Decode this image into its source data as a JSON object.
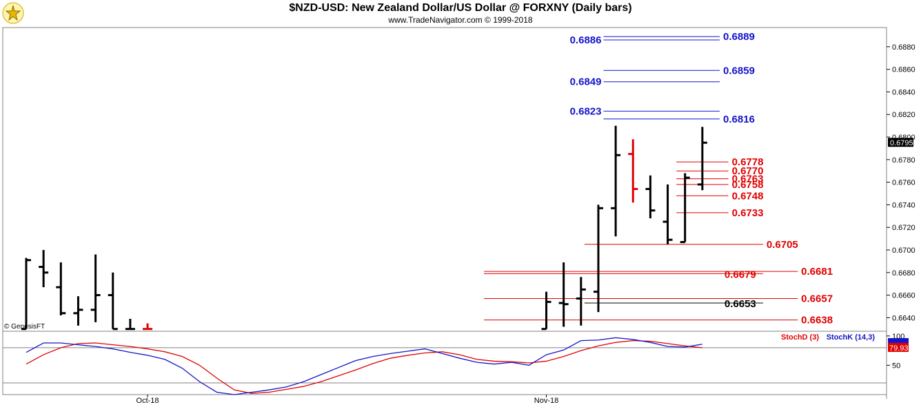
{
  "header": {
    "title": "$NZD-USD:  New Zealand Dollar/US Dollar @ FORXNY  (Daily bars)",
    "subtitle": "www.TradeNavigator.com © 1999-2018"
  },
  "colors": {
    "up_bar": "#000000",
    "down_bar": "#e00000",
    "blue_level": "#1414c8",
    "red_level": "#e00000",
    "black_level": "#000000",
    "stoch_d": "#e00000",
    "stoch_k": "#1414c8",
    "grid": "#808080",
    "price_marker_bg": "#000000"
  },
  "chart_data": [
    {
      "type": "ohlc",
      "title": "$NZD-USD:  New Zealand Dollar/US Dollar @ FORXNY  (Daily bars)",
      "xlabel": "",
      "ylabel": "",
      "ylim": [
        0.6628,
        0.6897
      ],
      "y_ticks": [
        "0.6880",
        "0.6860",
        "0.6840",
        "0.6820",
        "0.6800",
        "0.6780",
        "0.6760",
        "0.6740",
        "0.6720",
        "0.6700",
        "0.6680",
        "0.6660",
        "0.6640"
      ],
      "y_tick_values": [
        0.688,
        0.686,
        0.684,
        0.682,
        0.68,
        0.678,
        0.676,
        0.674,
        0.672,
        0.67,
        0.668,
        0.666,
        0.664
      ],
      "x_labels": [
        {
          "label": "Oct-18",
          "index": 7
        },
        {
          "label": "Nov-18",
          "index": 30
        }
      ],
      "last_price": "0.6795",
      "watermark": "© GenesisFT",
      "grid": false,
      "bars": [
        {
          "i": 0,
          "o": 0.663,
          "h": 0.6693,
          "l": 0.663,
          "c": 0.6691,
          "dir": "up"
        },
        {
          "i": 1,
          "o": 0.6685,
          "h": 0.67,
          "l": 0.6667,
          "c": 0.668,
          "dir": "up"
        },
        {
          "i": 2,
          "o": 0.6667,
          "h": 0.6689,
          "l": 0.6642,
          "c": 0.6644,
          "dir": "up"
        },
        {
          "i": 3,
          "o": 0.6644,
          "h": 0.6659,
          "l": 0.6633,
          "c": 0.6647,
          "dir": "up"
        },
        {
          "i": 4,
          "o": 0.6647,
          "h": 0.6696,
          "l": 0.6636,
          "c": 0.666,
          "dir": "up"
        },
        {
          "i": 5,
          "o": 0.666,
          "h": 0.668,
          "l": 0.663,
          "c": 0.663,
          "dir": "up"
        },
        {
          "i": 6,
          "o": 0.663,
          "h": 0.6639,
          "l": 0.663,
          "c": 0.663,
          "dir": "up"
        },
        {
          "i": 7,
          "o": 0.663,
          "h": 0.6635,
          "l": 0.663,
          "c": 0.663,
          "dir": "down"
        },
        {
          "i": 30,
          "o": 0.663,
          "h": 0.6663,
          "l": 0.663,
          "c": 0.6654,
          "dir": "up"
        },
        {
          "i": 31,
          "o": 0.6653,
          "h": 0.6689,
          "l": 0.6632,
          "c": 0.6652,
          "dir": "up"
        },
        {
          "i": 32,
          "o": 0.6657,
          "h": 0.6676,
          "l": 0.6633,
          "c": 0.6665,
          "dir": "up"
        },
        {
          "i": 33,
          "o": 0.6663,
          "h": 0.674,
          "l": 0.6645,
          "c": 0.6737,
          "dir": "up"
        },
        {
          "i": 34,
          "o": 0.6737,
          "h": 0.681,
          "l": 0.6712,
          "c": 0.6784,
          "dir": "up"
        },
        {
          "i": 35,
          "o": 0.6785,
          "h": 0.6798,
          "l": 0.6742,
          "c": 0.6754,
          "dir": "down"
        },
        {
          "i": 36,
          "o": 0.6754,
          "h": 0.6766,
          "l": 0.6728,
          "c": 0.6735,
          "dir": "up"
        },
        {
          "i": 37,
          "o": 0.6725,
          "h": 0.6758,
          "l": 0.6705,
          "c": 0.6709,
          "dir": "up"
        },
        {
          "i": 38,
          "o": 0.6707,
          "h": 0.6768,
          "l": 0.6707,
          "c": 0.6764,
          "dir": "up"
        },
        {
          "i": 39,
          "o": 0.6758,
          "h": 0.6809,
          "l": 0.6753,
          "c": 0.6795,
          "dir": "up"
        }
      ],
      "levels": [
        {
          "value": 0.6889,
          "label": "0.6889",
          "color": "blue",
          "from": 33.3,
          "to": 40,
          "side": "right"
        },
        {
          "value": 0.6886,
          "label": "0.6886",
          "color": "blue",
          "from": 33.3,
          "to": 40,
          "side": "left"
        },
        {
          "value": 0.6859,
          "label": "0.6859",
          "color": "blue",
          "from": 33.3,
          "to": 40,
          "side": "right"
        },
        {
          "value": 0.6849,
          "label": "0.6849",
          "color": "blue",
          "from": 33.3,
          "to": 40,
          "side": "left"
        },
        {
          "value": 0.6823,
          "label": "0.6823",
          "color": "blue",
          "from": 33.3,
          "to": 40,
          "side": "left"
        },
        {
          "value": 0.6816,
          "label": "0.6816",
          "color": "blue",
          "from": 33.3,
          "to": 40,
          "side": "right"
        },
        {
          "value": 0.6778,
          "label": "0.6778",
          "color": "red",
          "from": 37.5,
          "to": 40.5,
          "side": "right"
        },
        {
          "value": 0.677,
          "label": "0.6770",
          "color": "red",
          "from": 37.5,
          "to": 40.5,
          "side": "right"
        },
        {
          "value": 0.6763,
          "label": "0.6763",
          "color": "red",
          "from": 37.5,
          "to": 40.5,
          "side": "right"
        },
        {
          "value": 0.6758,
          "label": "0.6758",
          "color": "red",
          "from": 37.5,
          "to": 40.5,
          "side": "right"
        },
        {
          "value": 0.6748,
          "label": "0.6748",
          "color": "red",
          "from": 37.5,
          "to": 40.5,
          "side": "right"
        },
        {
          "value": 0.6733,
          "label": "0.6733",
          "color": "red",
          "from": 37.5,
          "to": 40.5,
          "side": "right"
        },
        {
          "value": 0.6705,
          "label": "0.6705",
          "color": "red",
          "from": 32.2,
          "to": 42.5,
          "side": "right"
        },
        {
          "value": 0.6681,
          "label": "0.6681",
          "color": "red",
          "from": 26.4,
          "to": 44.5,
          "side": "right"
        },
        {
          "value": 0.6679,
          "label": "0.6679",
          "color": "red",
          "from": 26.4,
          "to": 42.5,
          "side": "inline"
        },
        {
          "value": 0.6657,
          "label": "0.6657",
          "color": "red",
          "from": 26.4,
          "to": 44.5,
          "side": "right"
        },
        {
          "value": 0.6653,
          "label": "0.6653",
          "color": "black",
          "from": 32.2,
          "to": 42.5,
          "side": "inline"
        },
        {
          "value": 0.6638,
          "label": "0.6638",
          "color": "red",
          "from": 26.4,
          "to": 44.5,
          "side": "right"
        }
      ]
    },
    {
      "type": "line",
      "title": "",
      "xlabel": "",
      "ylabel": "",
      "ylim": [
        0,
        108
      ],
      "y_ticks": [
        "100",
        "50"
      ],
      "y_tick_values": [
        100,
        50
      ],
      "hlines": [
        80,
        20
      ],
      "last_value_label": "79.93",
      "series": [
        {
          "name": "StochD (3)",
          "color": "red",
          "points": [
            [
              0,
              52
            ],
            [
              1,
              68
            ],
            [
              2,
              80
            ],
            [
              3,
              87
            ],
            [
              4,
              88
            ],
            [
              5,
              85
            ],
            [
              6,
              82
            ],
            [
              7,
              78
            ],
            [
              8,
              73
            ],
            [
              9,
              65
            ],
            [
              10,
              50
            ],
            [
              11,
              28
            ],
            [
              12,
              8
            ],
            [
              13,
              2
            ],
            [
              14,
              4
            ],
            [
              15,
              9
            ],
            [
              16,
              14
            ],
            [
              17,
              22
            ],
            [
              18,
              32
            ],
            [
              19,
              42
            ],
            [
              20,
              53
            ],
            [
              21,
              62
            ],
            [
              22,
              67
            ],
            [
              23,
              71
            ],
            [
              24,
              73
            ],
            [
              25,
              68
            ],
            [
              26,
              60
            ],
            [
              27,
              57
            ],
            [
              28,
              56
            ],
            [
              29,
              54
            ],
            [
              30,
              57
            ],
            [
              31,
              65
            ],
            [
              32,
              75
            ],
            [
              33,
              83
            ],
            [
              34,
              89
            ],
            [
              35,
              92
            ],
            [
              36,
              91
            ],
            [
              37,
              87
            ],
            [
              38,
              83
            ],
            [
              39,
              79.9
            ]
          ]
        },
        {
          "name": "StochK (14,3)",
          "color": "blue",
          "points": [
            [
              0,
              72
            ],
            [
              1,
              88
            ],
            [
              2,
              88
            ],
            [
              3,
              85
            ],
            [
              4,
              82
            ],
            [
              5,
              78
            ],
            [
              6,
              72
            ],
            [
              7,
              67
            ],
            [
              8,
              60
            ],
            [
              9,
              45
            ],
            [
              10,
              22
            ],
            [
              11,
              4
            ],
            [
              12,
              0
            ],
            [
              13,
              4
            ],
            [
              14,
              8
            ],
            [
              15,
              13
            ],
            [
              16,
              22
            ],
            [
              17,
              34
            ],
            [
              18,
              46
            ],
            [
              19,
              58
            ],
            [
              20,
              65
            ],
            [
              21,
              70
            ],
            [
              22,
              74
            ],
            [
              23,
              78
            ],
            [
              24,
              70
            ],
            [
              25,
              62
            ],
            [
              26,
              55
            ],
            [
              27,
              52
            ],
            [
              28,
              55
            ],
            [
              29,
              50
            ],
            [
              30,
              68
            ],
            [
              31,
              76
            ],
            [
              32,
              92
            ],
            [
              33,
              93
            ],
            [
              34,
              97
            ],
            [
              35,
              94
            ],
            [
              36,
              89
            ],
            [
              37,
              82
            ],
            [
              38,
              81
            ],
            [
              39,
              86
            ]
          ]
        }
      ],
      "x_labels": [
        {
          "label": "Oct-18",
          "index": 7
        },
        {
          "label": "Nov-18",
          "index": 30
        }
      ]
    }
  ]
}
